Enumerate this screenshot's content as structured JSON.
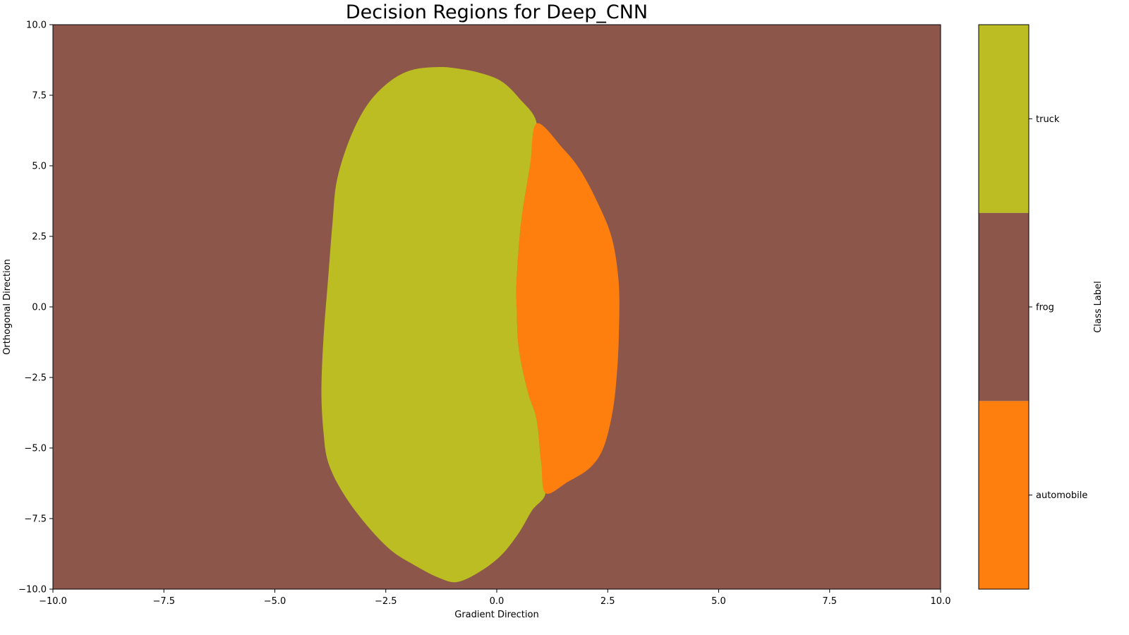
{
  "chart_data": {
    "type": "heatmap",
    "title": "Decision Regions for Deep_CNN",
    "xlabel": "Gradient Direction",
    "ylabel": "Orthogonal Direction",
    "xlim": [
      -10,
      10
    ],
    "ylim": [
      -10,
      10
    ],
    "x_ticks": [
      -10,
      -7.5,
      -5,
      -2.5,
      0,
      2.5,
      5,
      7.5,
      10
    ],
    "x_tick_labels": [
      "−10.0",
      "−7.5",
      "−5.0",
      "−2.5",
      "0.0",
      "2.5",
      "5.0",
      "7.5",
      "10.0"
    ],
    "y_ticks": [
      10,
      7.5,
      5,
      2.5,
      0,
      -2.5,
      -5,
      -7.5,
      -10
    ],
    "y_tick_labels": [
      "10.0",
      "7.5",
      "5.0",
      "2.5",
      "0.0",
      "−2.5",
      "−5.0",
      "−7.5",
      "−10.0"
    ],
    "background_class": "frog",
    "regions": [
      {
        "class": "truck",
        "boundary": [
          [
            -1.3,
            8.5
          ],
          [
            -0.9,
            8.45
          ],
          [
            -0.4,
            8.3
          ],
          [
            0.1,
            8.0
          ],
          [
            0.5,
            7.4
          ],
          [
            0.9,
            6.5
          ],
          [
            0.75,
            5.0
          ],
          [
            0.55,
            3.0
          ],
          [
            0.45,
            1.0
          ],
          [
            0.45,
            0.0
          ],
          [
            0.5,
            -1.5
          ],
          [
            0.7,
            -3.0
          ],
          [
            0.9,
            -4.0
          ],
          [
            1.0,
            -5.5
          ],
          [
            1.1,
            -6.6
          ],
          [
            0.8,
            -7.2
          ],
          [
            0.5,
            -8.0
          ],
          [
            0.1,
            -8.8
          ],
          [
            -0.4,
            -9.4
          ],
          [
            -0.9,
            -9.75
          ],
          [
            -1.3,
            -9.6
          ],
          [
            -1.8,
            -9.2
          ],
          [
            -2.4,
            -8.6
          ],
          [
            -3.0,
            -7.6
          ],
          [
            -3.5,
            -6.5
          ],
          [
            -3.8,
            -5.5
          ],
          [
            -3.9,
            -4.5
          ],
          [
            -3.95,
            -3.0
          ],
          [
            -3.9,
            -1.0
          ],
          [
            -3.8,
            1.0
          ],
          [
            -3.7,
            3.0
          ],
          [
            -3.6,
            4.5
          ],
          [
            -3.3,
            6.0
          ],
          [
            -2.9,
            7.2
          ],
          [
            -2.4,
            8.0
          ],
          [
            -1.9,
            8.4
          ]
        ]
      },
      {
        "class": "automobile",
        "boundary": [
          [
            0.9,
            6.5
          ],
          [
            1.5,
            5.6
          ],
          [
            1.9,
            4.8
          ],
          [
            2.3,
            3.6
          ],
          [
            2.6,
            2.4
          ],
          [
            2.75,
            0.8
          ],
          [
            2.75,
            -1.0
          ],
          [
            2.7,
            -2.5
          ],
          [
            2.6,
            -3.8
          ],
          [
            2.4,
            -5.0
          ],
          [
            2.1,
            -5.7
          ],
          [
            1.6,
            -6.2
          ],
          [
            1.1,
            -6.6
          ],
          [
            1.0,
            -5.5
          ],
          [
            0.9,
            -4.0
          ],
          [
            0.7,
            -3.0
          ],
          [
            0.5,
            -1.5
          ],
          [
            0.45,
            0.0
          ],
          [
            0.45,
            1.0
          ],
          [
            0.55,
            3.0
          ],
          [
            0.75,
            5.0
          ]
        ]
      }
    ],
    "colorbar": {
      "label": "Class Label",
      "classes": [
        {
          "name": "automobile",
          "color": "#ff7f0e"
        },
        {
          "name": "frog",
          "color": "#8c564b"
        },
        {
          "name": "truck",
          "color": "#bcbd22"
        }
      ]
    }
  }
}
